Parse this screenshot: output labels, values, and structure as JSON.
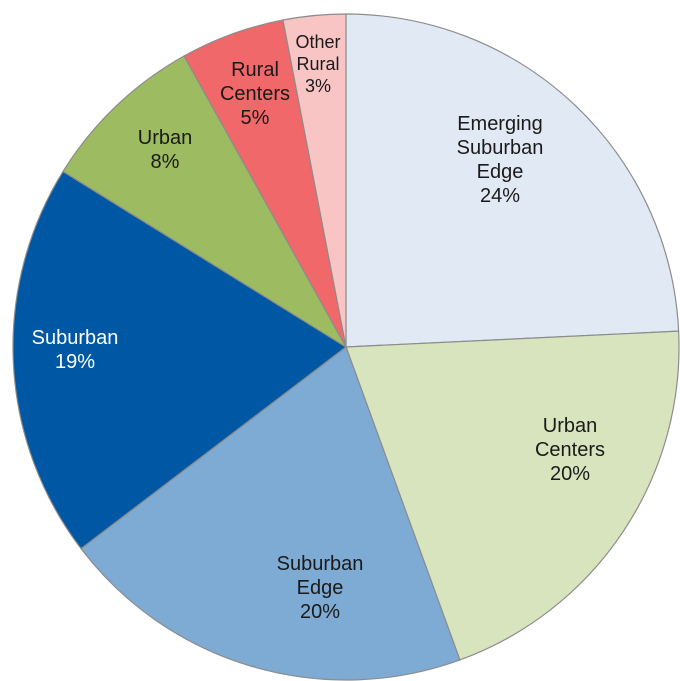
{
  "chart_data": {
    "type": "pie",
    "categories": [
      "Emerging Suburban Edge",
      "Urban Centers",
      "Suburban Edge",
      "Suburban",
      "Urban",
      "Rural Centers",
      "Other Rural"
    ],
    "values": [
      24,
      20,
      20,
      19,
      8,
      5,
      3
    ],
    "value_labels": [
      "24%",
      "20%",
      "20%",
      "19%",
      "8%",
      "5%",
      "3%"
    ],
    "colors": [
      "#e1e9f5",
      "#d8e4be",
      "#7eabd4",
      "#0058a5",
      "#9dbb61",
      "#f0686a",
      "#f8c4c4"
    ],
    "label_colors": [
      "#1a1a1a",
      "#1a1a1a",
      "#1a1a1a",
      "#ffffff",
      "#1a1a1a",
      "#1a1a1a",
      "#1a1a1a"
    ]
  }
}
